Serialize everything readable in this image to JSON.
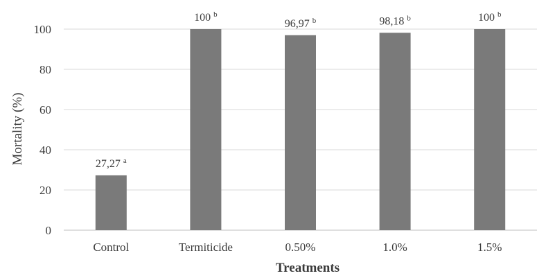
{
  "chart_data": {
    "type": "bar",
    "categories": [
      "Control",
      "Termiticide",
      "0.50%",
      "1.0%",
      "1.5%"
    ],
    "values": [
      27.27,
      100,
      96.97,
      98.18,
      100
    ],
    "data_labels": [
      "27,27",
      "100",
      "96,97",
      "98,18",
      "100"
    ],
    "significance_letters": [
      "a",
      "b",
      "b",
      "b",
      "b"
    ],
    "xlabel": "Treatments",
    "ylabel": "Mortality (%)",
    "ylim": [
      0,
      100
    ],
    "yticks": [
      "0",
      "20",
      "40",
      "60",
      "80",
      "100"
    ],
    "grid": "horizontal",
    "bar_color": "#7a7a7a",
    "grid_color": "#d9d9d9"
  }
}
